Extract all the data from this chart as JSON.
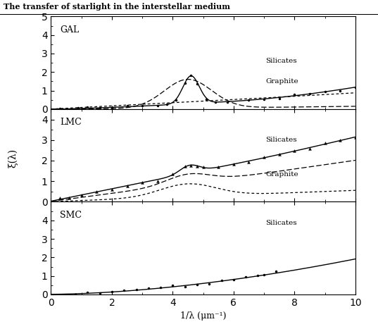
{
  "title_top": "The transfer of starlight in the interstellar medium",
  "ylabel": "ξ(λ)",
  "xlabel": "1/λ (μm⁻¹)",
  "panels": [
    "GAL",
    "LMC",
    "SMC"
  ],
  "xlim": [
    0,
    10
  ],
  "background": "#ffffff",
  "lw_solid": 1.0,
  "lw_dash": 0.9,
  "ms_dot": 3.0,
  "ms_tri": 2.8
}
